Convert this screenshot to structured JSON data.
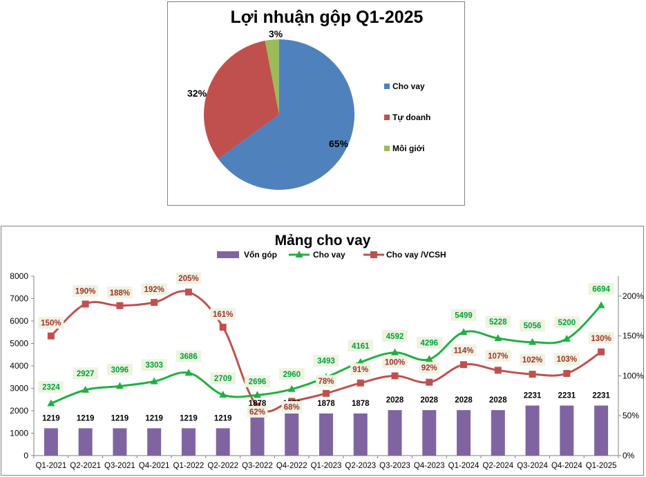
{
  "chart_data": [
    {
      "type": "pie",
      "title": "Lợi nhuận gộp Q1-2025",
      "slices": [
        {
          "label": "Cho vay",
          "value": 65,
          "display": "65%",
          "color": "#4F81BD"
        },
        {
          "label": "Tự doanh",
          "value": 32,
          "display": "32%",
          "color": "#C0504D"
        },
        {
          "label": "Môi giới",
          "value": 3,
          "display": "3%",
          "color": "#9BBB59"
        }
      ],
      "legend_position": "right"
    },
    {
      "type": "bar+line",
      "title": "Mảng cho vay",
      "categories": [
        "Q1-2021",
        "Q2-2021",
        "Q3-2021",
        "Q4-2021",
        "Q1-2022",
        "Q2-2022",
        "Q3-2022",
        "Q4-2022",
        "Q1-2023",
        "Q2-2023",
        "Q3-2023",
        "Q4-2023",
        "Q1-2024",
        "Q2-2024",
        "Q3-2024",
        "Q4-2024",
        "Q1-2025"
      ],
      "series": [
        {
          "name": "Vốn góp",
          "kind": "bar",
          "axis": "left",
          "color": "#8064A2",
          "values": [
            1219,
            1219,
            1219,
            1219,
            1219,
            1219,
            1878,
            1878,
            1878,
            1878,
            2028,
            2028,
            2028,
            2028,
            2231,
            2231,
            2231
          ]
        },
        {
          "name": "Cho vay",
          "kind": "line",
          "axis": "left",
          "color": "#1FB040",
          "label_color": "#00A03C",
          "values": [
            2324,
            2927,
            3096,
            3303,
            3686,
            2709,
            2696,
            2960,
            3493,
            4161,
            4592,
            4296,
            5499,
            5228,
            5056,
            5200,
            6694
          ]
        },
        {
          "name": "Cho vay /VCSH",
          "kind": "line",
          "axis": "right",
          "color": "#C0504D",
          "label_color": "#A0322D",
          "values": [
            150,
            190,
            188,
            192,
            205,
            161,
            62,
            68,
            78,
            91,
            100,
            92,
            114,
            107,
            102,
            103,
            130
          ],
          "labels": [
            "150%",
            "190%",
            "188%",
            "192%",
            "205%",
            "161%",
            "62%",
            "68%",
            "78%",
            "91%",
            "100%",
            "92%",
            "114%",
            "107%",
            "102%",
            "103%",
            "130%"
          ]
        }
      ],
      "y_left": {
        "min": 0,
        "max": 8000,
        "ticks": [
          "0",
          "1000",
          "2000",
          "3000",
          "4000",
          "5000",
          "6000",
          "7000",
          "8000"
        ]
      },
      "y_right": {
        "min": 0,
        "max": 225,
        "ticks": [
          "0%",
          "50%",
          "100%",
          "150%",
          "200%"
        ]
      },
      "legend_position": "top"
    }
  ]
}
